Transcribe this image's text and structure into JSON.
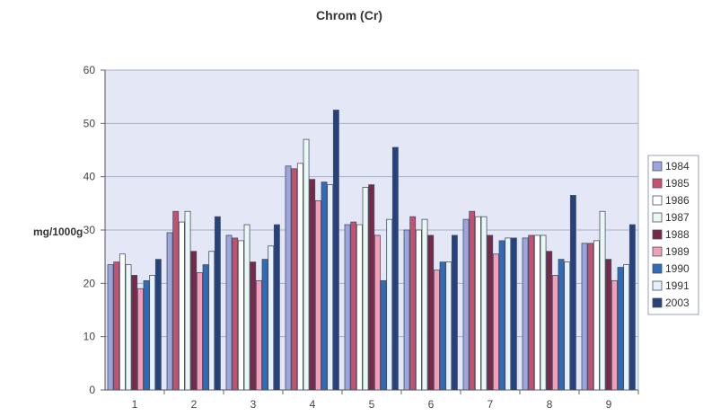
{
  "chart_data": {
    "type": "bar",
    "title": "Chrom (Cr)",
    "xlabel": "",
    "ylabel": "mg/1000g",
    "ylim": [
      0,
      60
    ],
    "yticks": [
      0,
      10,
      20,
      30,
      40,
      50,
      60
    ],
    "grid": true,
    "legend_position": "right",
    "categories": [
      "1",
      "2",
      "3",
      "4",
      "5",
      "6",
      "7",
      "8",
      "9"
    ],
    "series": [
      {
        "name": "1984",
        "color": "#9da6dc",
        "values": [
          23.5,
          29.5,
          29,
          42,
          31,
          30,
          32,
          28.5,
          27.5
        ]
      },
      {
        "name": "1985",
        "color": "#c94f6e",
        "values": [
          24,
          33.5,
          28.5,
          41.5,
          31.5,
          32.5,
          33.5,
          29,
          27.5
        ]
      },
      {
        "name": "1986",
        "color": "#ffffff",
        "values": [
          25.5,
          31.5,
          28,
          42.5,
          31,
          30,
          32.5,
          29,
          28
        ]
      },
      {
        "name": "1987",
        "color": "#eaf8f4",
        "values": [
          23.5,
          33.5,
          31,
          47,
          38,
          32,
          32.5,
          29,
          33.5
        ]
      },
      {
        "name": "1988",
        "color": "#7a2748",
        "values": [
          21.5,
          26,
          24,
          39.5,
          38.5,
          29,
          29,
          26,
          24.5
        ]
      },
      {
        "name": "1989",
        "color": "#f0a0b8",
        "values": [
          19,
          22,
          20.5,
          35.5,
          29,
          22.5,
          25.5,
          21.5,
          20.5
        ]
      },
      {
        "name": "1990",
        "color": "#2e6cb8",
        "values": [
          20.5,
          23.5,
          24.5,
          39,
          20.5,
          24,
          28,
          24.5,
          23
        ]
      },
      {
        "name": "1991",
        "color": "#e4f3fb",
        "values": [
          21.5,
          26,
          27,
          38.5,
          32,
          24,
          28.5,
          24,
          23.5
        ]
      },
      {
        "name": "2003",
        "color": "#27427a",
        "values": [
          24.5,
          32.5,
          31,
          52.5,
          45.5,
          29,
          28.5,
          36.5,
          31
        ]
      }
    ]
  }
}
